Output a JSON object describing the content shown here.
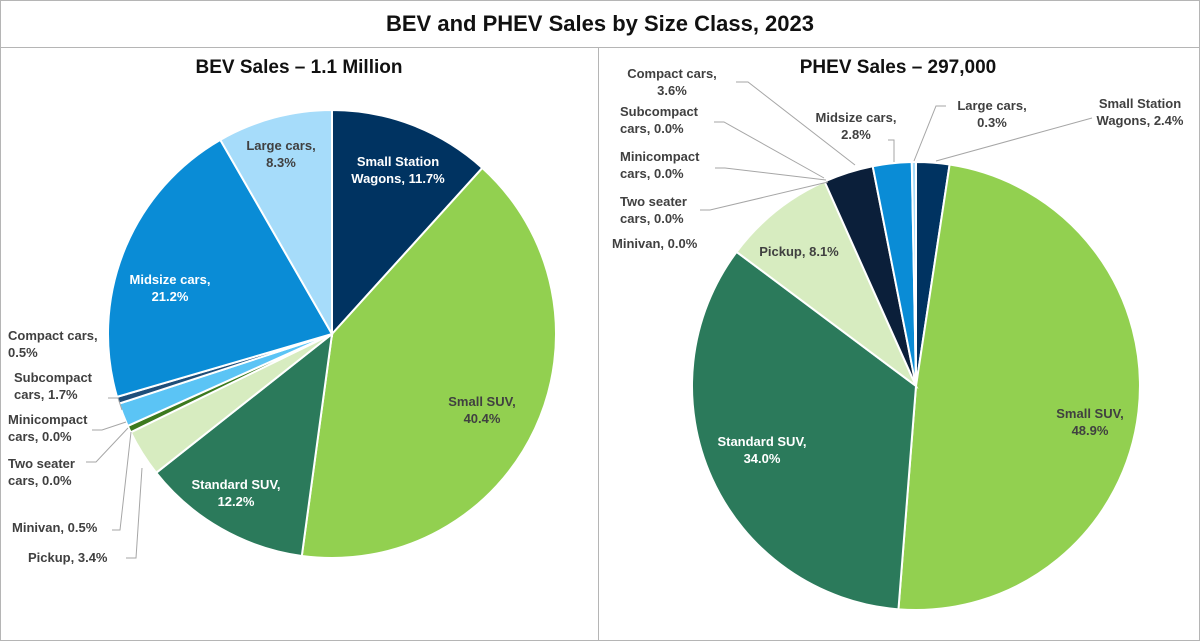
{
  "title": "BEV and PHEV Sales by Size Class, 2023",
  "chart_data": [
    {
      "type": "pie",
      "title": "BEV Sales – 1.1 Million",
      "slices": [
        {
          "name": "Small Station Wagons",
          "value": 11.7,
          "label": [
            "Small Station",
            "Wagons, 11.7%"
          ],
          "color": "#003361",
          "label_color": "#ffffff"
        },
        {
          "name": "Small SUV",
          "value": 40.4,
          "label": [
            "Small SUV,",
            "40.4%"
          ],
          "color": "#92d050",
          "label_color": "#404040"
        },
        {
          "name": "Standard SUV",
          "value": 12.2,
          "label": [
            "Standard SUV,",
            "12.2%"
          ],
          "color": "#2b7a5b",
          "label_color": "#ffffff"
        },
        {
          "name": "Pickup",
          "value": 3.4,
          "label": [
            "Pickup, 3.4%"
          ],
          "color": "#d7ecc0",
          "label_color": "#404040"
        },
        {
          "name": "Minivan",
          "value": 0.5,
          "label": [
            "Minivan, 0.5%"
          ],
          "color": "#3c7a1e",
          "label_color": "#404040"
        },
        {
          "name": "Two seater cars",
          "value": 0.0,
          "label": [
            "Two seater",
            "cars, 0.0%"
          ],
          "color": "#a9d18e",
          "label_color": "#404040"
        },
        {
          "name": "Minicompact cars",
          "value": 0.0,
          "label": [
            "Minicompact",
            "cars, 0.0%"
          ],
          "color": "#1f4e79",
          "label_color": "#404040"
        },
        {
          "name": "Subcompact cars",
          "value": 1.7,
          "label": [
            "Subcompact",
            "cars, 1.7%"
          ],
          "color": "#5bc4f5",
          "label_color": "#404040"
        },
        {
          "name": "Compact cars",
          "value": 0.5,
          "label": [
            "Compact cars,",
            "0.5%"
          ],
          "color": "#1f4e79",
          "label_color": "#404040"
        },
        {
          "name": "Midsize cars",
          "value": 21.2,
          "label": [
            "Midsize cars,",
            "21.2%"
          ],
          "color": "#0a8cd6",
          "label_color": "#ffffff"
        },
        {
          "name": "Large cars",
          "value": 8.3,
          "label": [
            "Large cars,",
            "8.3%"
          ],
          "color": "#a6dcfa",
          "label_color": "#404040"
        }
      ]
    },
    {
      "type": "pie",
      "title": "PHEV Sales – 297,000",
      "slices": [
        {
          "name": "Small Station Wagons",
          "value": 2.4,
          "label": [
            "Small Station",
            "Wagons, 2.4%"
          ],
          "color": "#003361",
          "label_color": "#404040"
        },
        {
          "name": "Small SUV",
          "value": 48.9,
          "label": [
            "Small SUV,",
            "48.9%"
          ],
          "color": "#92d050",
          "label_color": "#404040"
        },
        {
          "name": "Standard SUV",
          "value": 34.0,
          "label": [
            "Standard SUV,",
            "34.0%"
          ],
          "color": "#2b7a5b",
          "label_color": "#ffffff"
        },
        {
          "name": "Pickup",
          "value": 8.1,
          "label": [
            "Pickup, 8.1%"
          ],
          "color": "#d7ecc0",
          "label_color": "#404040"
        },
        {
          "name": "Minivan",
          "value": 0.0,
          "label": [
            "Minivan, 0.0%"
          ],
          "color": "#3c7a1e",
          "label_color": "#404040"
        },
        {
          "name": "Two seater cars",
          "value": 0.0,
          "label": [
            "Two seater",
            "cars, 0.0%"
          ],
          "color": "#a9d18e",
          "label_color": "#404040"
        },
        {
          "name": "Minicompact cars",
          "value": 0.0,
          "label": [
            "Minicompact",
            "cars, 0.0%"
          ],
          "color": "#1f4e79",
          "label_color": "#404040"
        },
        {
          "name": "Subcompact cars",
          "value": 0.0,
          "label": [
            "Subcompact",
            "cars, 0.0%"
          ],
          "color": "#5bc4f5",
          "label_color": "#404040"
        },
        {
          "name": "Compact cars",
          "value": 3.6,
          "label": [
            "Compact cars,",
            "3.6%"
          ],
          "color": "#0b1f3a",
          "label_color": "#404040"
        },
        {
          "name": "Midsize cars",
          "value": 2.8,
          "label": [
            "Midsize cars,",
            "2.8%"
          ],
          "color": "#0a8cd6",
          "label_color": "#404040"
        },
        {
          "name": "Large cars",
          "value": 0.3,
          "label": [
            "Large cars,",
            "0.3%"
          ],
          "color": "#a6dcfa",
          "label_color": "#404040"
        }
      ]
    }
  ]
}
